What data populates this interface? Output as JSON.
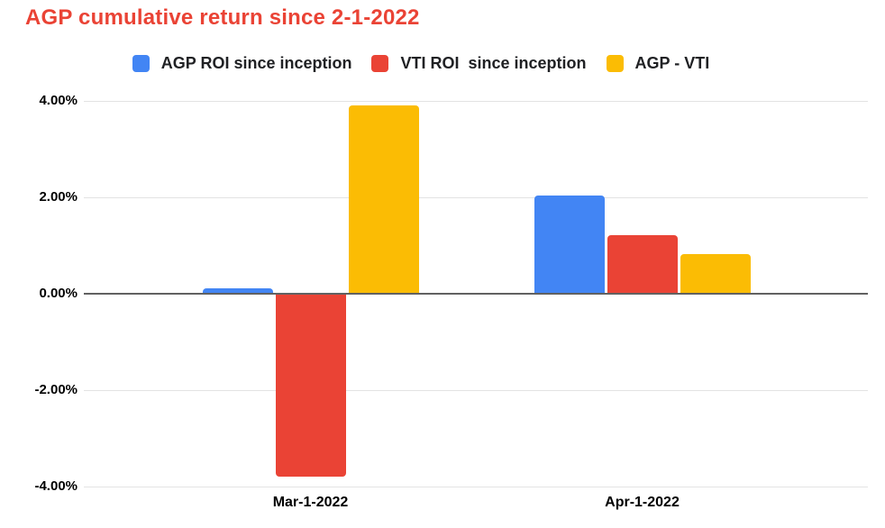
{
  "title": "AGP cumulative return since 2-1-2022",
  "title_color": "#EA4335",
  "chart_data": {
    "type": "bar",
    "categories": [
      "Mar-1-2022",
      "Apr-1-2022"
    ],
    "series": [
      {
        "name": "AGP ROI since inception",
        "color": "#4285F4",
        "values": [
          0.11,
          2.03
        ]
      },
      {
        "name": "VTI ROI  since inception",
        "color": "#EA4335",
        "values": [
          -3.79,
          1.21
        ]
      },
      {
        "name": "AGP - VTI",
        "color": "#FBBC04",
        "values": [
          3.9,
          0.82
        ]
      }
    ],
    "title": "AGP cumulative return since 2-1-2022",
    "xlabel": "",
    "ylabel": "",
    "ylim": [
      -4,
      4
    ],
    "ytick_step": 2,
    "ytick_labels": [
      "4.00%",
      "2.00%",
      "0.00%",
      "-2.00%",
      "-4.00%"
    ],
    "grid": true,
    "legend_position": "top",
    "axis_colors": {
      "gridline": "#E3E3E3",
      "zero_line": "#616161",
      "tick_text": "#000000",
      "legend_text": "#202124"
    }
  }
}
